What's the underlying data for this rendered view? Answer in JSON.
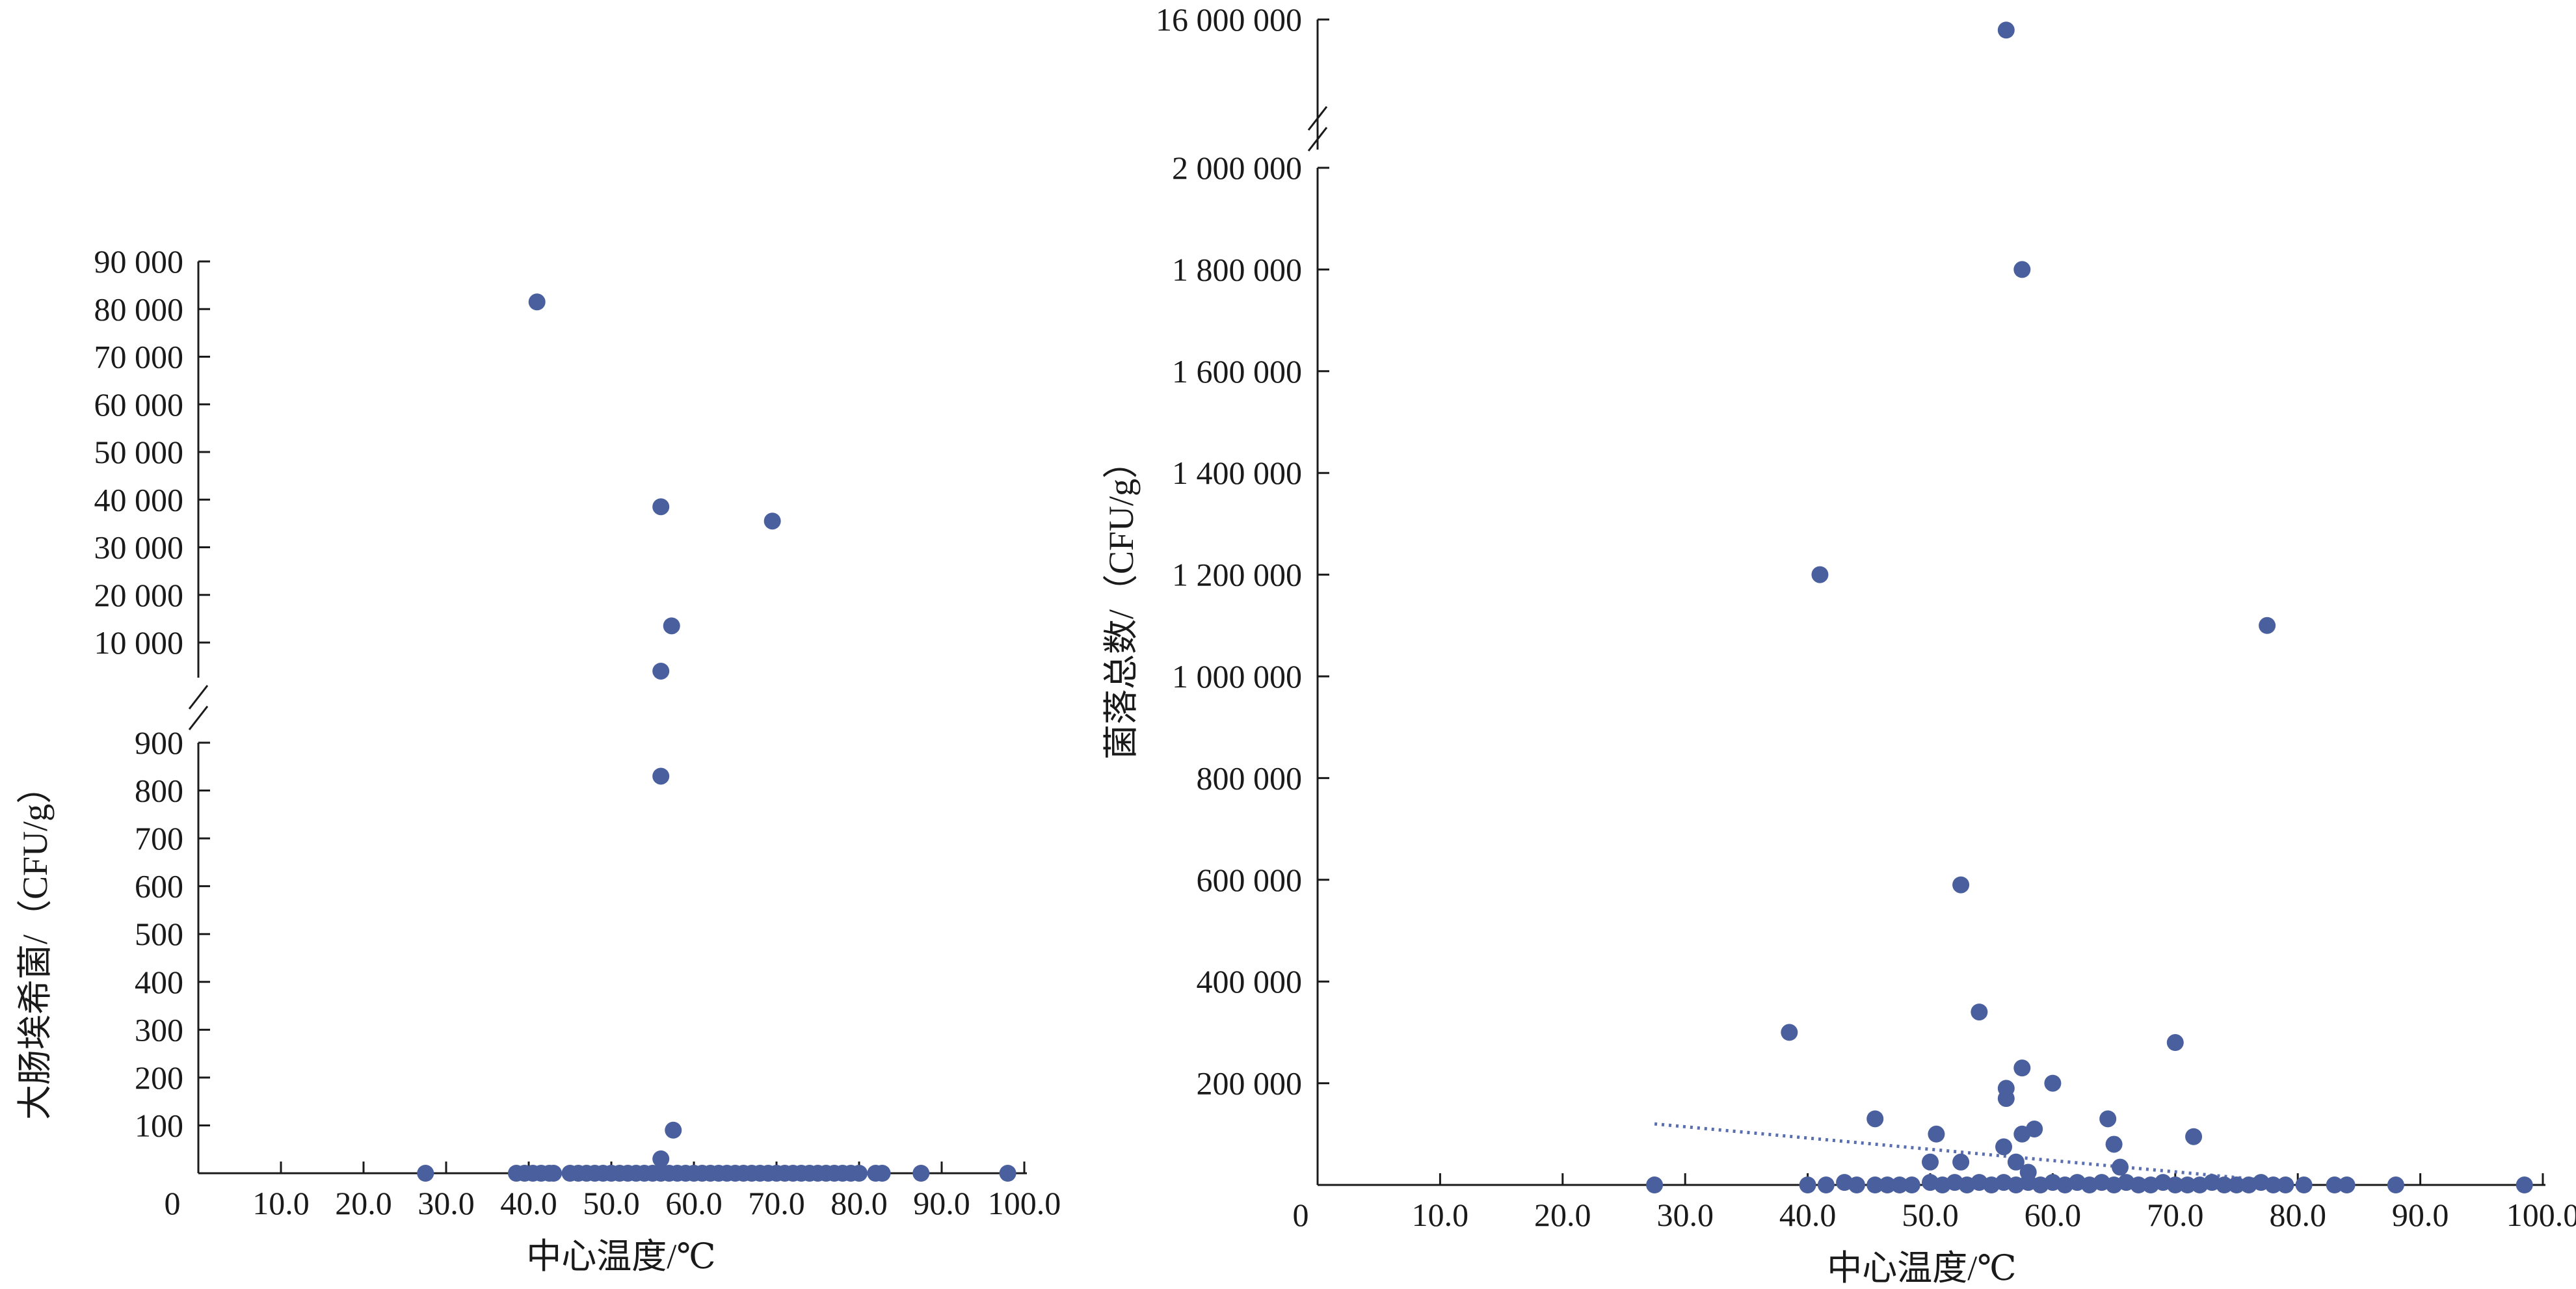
{
  "chart_data": [
    {
      "type": "scatter",
      "xlabel": "中心温度/℃",
      "ylabel": "大肠埃希菌/（CFU/g）",
      "x_origin_label": "0",
      "x_ticks": [
        {
          "value": 10,
          "label": "10.0"
        },
        {
          "value": 20,
          "label": "20.0"
        },
        {
          "value": 30,
          "label": "30.0"
        },
        {
          "value": 40,
          "label": "40.0"
        },
        {
          "value": 50,
          "label": "50.0"
        },
        {
          "value": 60,
          "label": "60.0"
        },
        {
          "value": 70,
          "label": "70.0"
        },
        {
          "value": 80,
          "label": "80.0"
        },
        {
          "value": 90,
          "label": "90.0"
        },
        {
          "value": 100,
          "label": "100.0"
        }
      ],
      "xlim": [
        0,
        100
      ],
      "y_axis_broken": true,
      "y_segments": [
        {
          "range": [
            0,
            950
          ],
          "ticks": [
            {
              "value": 100,
              "label": "100"
            },
            {
              "value": 200,
              "label": "200"
            },
            {
              "value": 300,
              "label": "300"
            },
            {
              "value": 400,
              "label": "400"
            },
            {
              "value": 500,
              "label": "500"
            },
            {
              "value": 600,
              "label": "600"
            },
            {
              "value": 700,
              "label": "700"
            },
            {
              "value": 800,
              "label": "800"
            },
            {
              "value": 900,
              "label": "900"
            }
          ]
        },
        {
          "range": [
            0,
            95000
          ],
          "ticks": [
            {
              "value": 10000,
              "label": "10 000"
            },
            {
              "value": 20000,
              "label": "20 000"
            },
            {
              "value": 30000,
              "label": "30 000"
            },
            {
              "value": 40000,
              "label": "40 000"
            },
            {
              "value": 50000,
              "label": "50 000"
            },
            {
              "value": 60000,
              "label": "60 000"
            },
            {
              "value": 70000,
              "label": "70 000"
            },
            {
              "value": 80000,
              "label": "80 000"
            },
            {
              "value": 90000,
              "label": "90 000"
            }
          ]
        }
      ],
      "points": [
        [
          27.5,
          0
        ],
        [
          38.5,
          0
        ],
        [
          39.5,
          0
        ],
        [
          40.5,
          0
        ],
        [
          41.5,
          0
        ],
        [
          42.5,
          0
        ],
        [
          43.0,
          0
        ],
        [
          45.0,
          0
        ],
        [
          46.0,
          0
        ],
        [
          47.0,
          0
        ],
        [
          48.0,
          0
        ],
        [
          49.0,
          0
        ],
        [
          50.0,
          0
        ],
        [
          51.0,
          0
        ],
        [
          52.0,
          0
        ],
        [
          53.0,
          0
        ],
        [
          54.0,
          0
        ],
        [
          55.0,
          0
        ],
        [
          56.0,
          0
        ],
        [
          57.0,
          0
        ],
        [
          58.0,
          0
        ],
        [
          59.0,
          0
        ],
        [
          60.0,
          0
        ],
        [
          61.0,
          0
        ],
        [
          62.0,
          0
        ],
        [
          63.0,
          0
        ],
        [
          64.0,
          0
        ],
        [
          65.0,
          0
        ],
        [
          66.0,
          0
        ],
        [
          67.0,
          0
        ],
        [
          68.0,
          0
        ],
        [
          69.0,
          0
        ],
        [
          70.0,
          0
        ],
        [
          71.0,
          0
        ],
        [
          72.0,
          0
        ],
        [
          73.0,
          0
        ],
        [
          74.0,
          0
        ],
        [
          75.0,
          0
        ],
        [
          76.0,
          0
        ],
        [
          77.0,
          0
        ],
        [
          78.0,
          0
        ],
        [
          79.0,
          0
        ],
        [
          80.0,
          0
        ],
        [
          82.0,
          0
        ],
        [
          82.8,
          0
        ],
        [
          87.5,
          0
        ],
        [
          98.0,
          0
        ],
        [
          56.0,
          30
        ],
        [
          57.5,
          90
        ],
        [
          56.0,
          830
        ],
        [
          56.0,
          4000
        ],
        [
          57.3,
          13500
        ],
        [
          69.5,
          35500
        ],
        [
          56.0,
          38500
        ],
        [
          41.0,
          81500
        ]
      ]
    },
    {
      "type": "scatter",
      "xlabel": "中心温度/℃",
      "ylabel": "菌落总数/（CFU/g）",
      "x_origin_label": "0",
      "x_ticks": [
        {
          "value": 10,
          "label": "10.0"
        },
        {
          "value": 20,
          "label": "20.0"
        },
        {
          "value": 30,
          "label": "30.0"
        },
        {
          "value": 40,
          "label": "40.0"
        },
        {
          "value": 50,
          "label": "50.0"
        },
        {
          "value": 60,
          "label": "60.0"
        },
        {
          "value": 70,
          "label": "70.0"
        },
        {
          "value": 80,
          "label": "80.0"
        },
        {
          "value": 90,
          "label": "90.0"
        },
        {
          "value": 100,
          "label": "100.0"
        }
      ],
      "xlim": [
        0,
        100
      ],
      "y_axis_broken": true,
      "y_segments": [
        {
          "range": [
            0,
            2000000
          ],
          "ticks": [
            {
              "value": 200000,
              "label": "200 000"
            },
            {
              "value": 400000,
              "label": "400 000"
            },
            {
              "value": 600000,
              "label": "600 000"
            },
            {
              "value": 800000,
              "label": "800 000"
            },
            {
              "value": 1000000,
              "label": "1 000 000"
            },
            {
              "value": 1200000,
              "label": "1 200 000"
            },
            {
              "value": 1400000,
              "label": "1 400 000"
            },
            {
              "value": 1600000,
              "label": "1 600 000"
            },
            {
              "value": 1800000,
              "label": "1 800 000"
            },
            {
              "value": 2000000,
              "label": "2 000 000"
            }
          ]
        },
        {
          "range": [
            2000000,
            16000000
          ],
          "ticks": [
            {
              "value": 16000000,
              "label": "16 000 000"
            }
          ]
        }
      ],
      "trendline": {
        "style": "dotted",
        "x": [
          27.5,
          78.0
        ],
        "y": [
          120000,
          8000
        ]
      },
      "points": [
        [
          27.5,
          0
        ],
        [
          40.0,
          0
        ],
        [
          41.5,
          0
        ],
        [
          43.0,
          5000
        ],
        [
          44.0,
          0
        ],
        [
          45.5,
          0
        ],
        [
          46.5,
          0
        ],
        [
          47.5,
          0
        ],
        [
          48.5,
          0
        ],
        [
          50.0,
          5000
        ],
        [
          51.0,
          0
        ],
        [
          52.0,
          5000
        ],
        [
          53.0,
          0
        ],
        [
          54.0,
          5000
        ],
        [
          55.0,
          0
        ],
        [
          56.0,
          5000
        ],
        [
          57.0,
          0
        ],
        [
          58.0,
          5000
        ],
        [
          59.0,
          0
        ],
        [
          60.0,
          5000
        ],
        [
          61.0,
          0
        ],
        [
          62.0,
          5000
        ],
        [
          63.0,
          0
        ],
        [
          64.0,
          5000
        ],
        [
          65.0,
          0
        ],
        [
          66.0,
          5000
        ],
        [
          67.0,
          0
        ],
        [
          68.0,
          0
        ],
        [
          69.0,
          5000
        ],
        [
          70.0,
          0
        ],
        [
          71.0,
          0
        ],
        [
          72.0,
          0
        ],
        [
          73.0,
          5000
        ],
        [
          74.0,
          0
        ],
        [
          75.0,
          0
        ],
        [
          76.0,
          0
        ],
        [
          77.0,
          5000
        ],
        [
          78.0,
          0
        ],
        [
          79.0,
          0
        ],
        [
          80.5,
          0
        ],
        [
          83.0,
          0
        ],
        [
          84.0,
          0
        ],
        [
          88.0,
          0
        ],
        [
          98.5,
          0
        ],
        [
          50.0,
          45000
        ],
        [
          52.5,
          45000
        ],
        [
          57.0,
          45000
        ],
        [
          58.0,
          25000
        ],
        [
          65.5,
          35000
        ],
        [
          45.5,
          130000
        ],
        [
          50.5,
          100000
        ],
        [
          56.0,
          75000
        ],
        [
          57.5,
          100000
        ],
        [
          58.5,
          110000
        ],
        [
          64.5,
          130000
        ],
        [
          65.0,
          80000
        ],
        [
          71.5,
          95000
        ],
        [
          38.5,
          300000
        ],
        [
          54.0,
          340000
        ],
        [
          56.2,
          170000
        ],
        [
          56.2,
          190000
        ],
        [
          57.5,
          230000
        ],
        [
          60.0,
          200000
        ],
        [
          70.0,
          280000
        ],
        [
          52.5,
          590000
        ],
        [
          41.0,
          1200000
        ],
        [
          77.5,
          1100000
        ],
        [
          57.5,
          1800000
        ],
        [
          56.2,
          15000000
        ]
      ]
    }
  ]
}
